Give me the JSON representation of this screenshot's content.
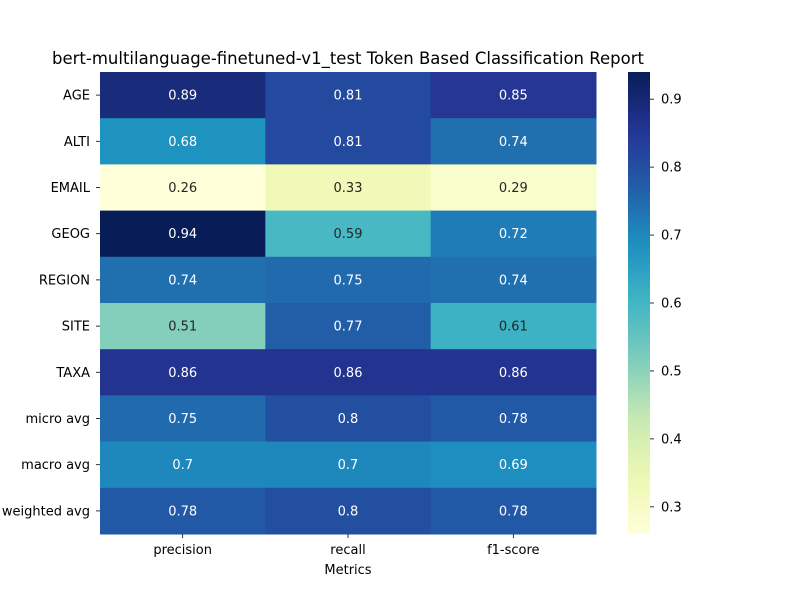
{
  "chart_data": {
    "type": "heatmap",
    "title": "bert-multilanguage-finetuned-v1_test Token Based Classification Report",
    "xlabel": "Metrics",
    "ylabel": "",
    "columns": [
      "precision",
      "recall",
      "f1-score"
    ],
    "rows": [
      "AGE",
      "ALTI",
      "EMAIL",
      "GEOG",
      "REGION",
      "SITE",
      "TAXA",
      "micro avg",
      "macro avg",
      "weighted avg"
    ],
    "values": [
      [
        0.89,
        0.81,
        0.85
      ],
      [
        0.68,
        0.81,
        0.74
      ],
      [
        0.26,
        0.33,
        0.29
      ],
      [
        0.94,
        0.59,
        0.72
      ],
      [
        0.74,
        0.75,
        0.74
      ],
      [
        0.51,
        0.77,
        0.61
      ],
      [
        0.86,
        0.86,
        0.86
      ],
      [
        0.75,
        0.8,
        0.78
      ],
      [
        0.7,
        0.7,
        0.69
      ],
      [
        0.78,
        0.8,
        0.78
      ]
    ],
    "labels": [
      [
        "0.89",
        "0.81",
        "0.85"
      ],
      [
        "0.68",
        "0.81",
        "0.74"
      ],
      [
        "0.26",
        "0.33",
        "0.29"
      ],
      [
        "0.94",
        "0.59",
        "0.72"
      ],
      [
        "0.74",
        "0.75",
        "0.74"
      ],
      [
        "0.51",
        "0.77",
        "0.61"
      ],
      [
        "0.86",
        "0.86",
        "0.86"
      ],
      [
        "0.75",
        "0.8",
        "0.78"
      ],
      [
        "0.7",
        "0.7",
        "0.69"
      ],
      [
        "0.78",
        "0.8",
        "0.78"
      ]
    ],
    "colorscale": "YlGnBu",
    "vmin": 0.26,
    "vmax": 0.94,
    "colorbar_ticks": [
      0.3,
      0.4,
      0.5,
      0.6,
      0.7,
      0.8,
      0.9
    ],
    "colorbar_tick_labels": [
      "0.3",
      "0.4",
      "0.5",
      "0.6",
      "0.7",
      "0.8",
      "0.9"
    ]
  }
}
